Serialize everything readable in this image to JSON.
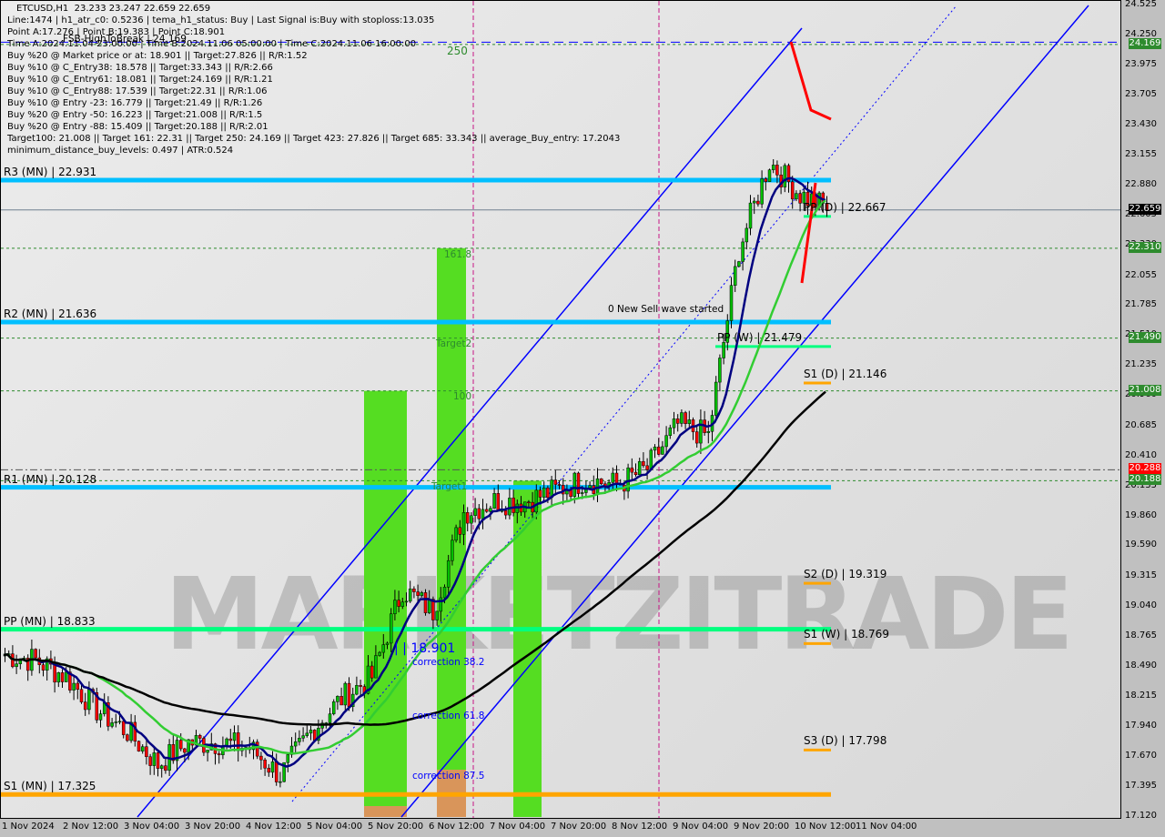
{
  "header": {
    "title": "ETCUSD,H1  23.233 23.247 22.659 22.659",
    "lines": [
      "Line:1474 | h1_atr_c0: 0.5236 | tema_h1_status: Buy | Last Signal is:Buy with stoploss:13.035",
      "Point A:17.276 | Point B:19.383 | Point C:18.901",
      "Time A:2024.11.04 23:00:00 | Time B:2024.11.06 05:00:00 | Time C:2024.11.06 16:00:00",
      "Buy %20 @ Market price or at: 18.901 || Target:27.826 || R/R:1.52",
      "Buy %10 @ C_Entry38: 18.578 || Target:33.343 || R/R:2.66",
      "Buy %10 @ C_Entry61: 18.081 || Target:24.169 || R/R:1.21",
      "Buy %10 @ C_Entry88: 17.539 || Target:22.31 || R/R:1.06",
      "Buy %10 @ Entry -23: 16.779 || Target:21.49 || R/R:1.26",
      "Buy %20 @ Entry -50: 16.223 || Target:21.008 || R/R:1.5",
      "Buy %20 @ Entry -88: 15.409 || Target:20.188 || R/R:2.01",
      "Target100: 21.008 || Target 161: 22.31 || Target 250: 24.169 || Target 423: 27.826 || Target 685: 33.343 || average_Buy_entry: 17.2043",
      "minimum_distance_buy_levels: 0.497 | ATR:0.524"
    ],
    "fsb": "FSB-HighToBreak | 24.169"
  },
  "chart_data": {
    "type": "candlestick",
    "symbol": "ETCUSD",
    "timeframe": "H1",
    "ylim": [
      17.12,
      24.525
    ],
    "y_ticks": [
      "24.525",
      "24.250",
      "23.975",
      "23.705",
      "23.430",
      "23.155",
      "22.880",
      "22.605",
      "22.330",
      "22.055",
      "21.785",
      "21.510",
      "21.235",
      "20.960",
      "20.685",
      "20.410",
      "20.135",
      "19.860",
      "19.590",
      "19.315",
      "19.040",
      "18.765",
      "18.490",
      "18.215",
      "17.940",
      "17.670",
      "17.395",
      "17.120"
    ],
    "x_ticks": [
      "1 Nov 2024",
      "2 Nov 12:00",
      "3 Nov 04:00",
      "3 Nov 20:00",
      "4 Nov 12:00",
      "5 Nov 04:00",
      "5 Nov 20:00",
      "6 Nov 12:00",
      "7 Nov 04:00",
      "7 Nov 20:00",
      "8 Nov 12:00",
      "9 Nov 04:00",
      "9 Nov 20:00",
      "10 Nov 12:00",
      "11 Nov 04:00"
    ],
    "close_every_8h": [
      18.6,
      18.55,
      18.4,
      18.1,
      17.9,
      17.6,
      17.8,
      17.8,
      17.75,
      17.5,
      17.9,
      18.2,
      18.4,
      19.2,
      19.0,
      19.9,
      20.0,
      20.0,
      20.1,
      20.2,
      20.15,
      20.3,
      20.7,
      20.6,
      22.3,
      23.1,
      22.8,
      22.66
    ],
    "price_tags": [
      {
        "v": "24.169",
        "c": "#2e8b2e"
      },
      {
        "v": "22.659",
        "c": "#000000"
      },
      {
        "v": "22.310",
        "c": "#2e8b2e"
      },
      {
        "v": "21.490",
        "c": "#2e8b2e"
      },
      {
        "v": "21.008",
        "c": "#2e8b2e"
      },
      {
        "v": "20.288",
        "c": "#ff0000"
      },
      {
        "v": "20.188",
        "c": "#2e8b2e"
      }
    ],
    "pivots": [
      {
        "label": "R3 (MN) | 22.931",
        "p": 22.931,
        "c": "#00bfff",
        "full": true
      },
      {
        "label": "R2 (MN) | 21.636",
        "p": 21.636,
        "c": "#00bfff",
        "full": true
      },
      {
        "label": "R1 (MN) | 20.128",
        "p": 20.128,
        "c": "#00bfff",
        "full": true
      },
      {
        "label": "PP (MN) | 18.833",
        "p": 18.833,
        "c": "#00ff7f",
        "full": true
      },
      {
        "label": "S1 (MN) | 17.325",
        "p": 17.325,
        "c": "#ffa500",
        "full": true
      },
      {
        "label": "PP (D) | 22.667",
        "p": 22.667,
        "c": "#00ff7f"
      },
      {
        "label": "PP (W) | 21.479",
        "p": 21.479,
        "c": "#00ff7f"
      },
      {
        "label": "S1 (D) | 21.146",
        "p": 21.146,
        "c": "#ffa500"
      },
      {
        "label": "S2 (D) | 19.319",
        "p": 19.319,
        "c": "#ffa500"
      },
      {
        "label": "S1 (W) | 18.769",
        "p": 18.769,
        "c": "#ffa500"
      },
      {
        "label": "S3 (D) | 17.798",
        "p": 17.798,
        "c": "#ffa500"
      }
    ],
    "annotations": {
      "t250": "250",
      "t161": "161.8",
      "target2": "Target2",
      "t100": "100",
      "target1": "Target1",
      "sell": "0 New Sell wave started",
      "pointc": "| | 18.901",
      "c38": "correction 38.2",
      "c61": "correction 61.8",
      "c87": "correction 87.5"
    },
    "colors": {
      "up": "#00c000",
      "down": "#ff0000",
      "ma_fast": "#000080",
      "ma_mid": "#32cd32",
      "ma_slow": "#000000",
      "channel": "#0000ff"
    }
  },
  "watermark": "MARKETZITRADE"
}
